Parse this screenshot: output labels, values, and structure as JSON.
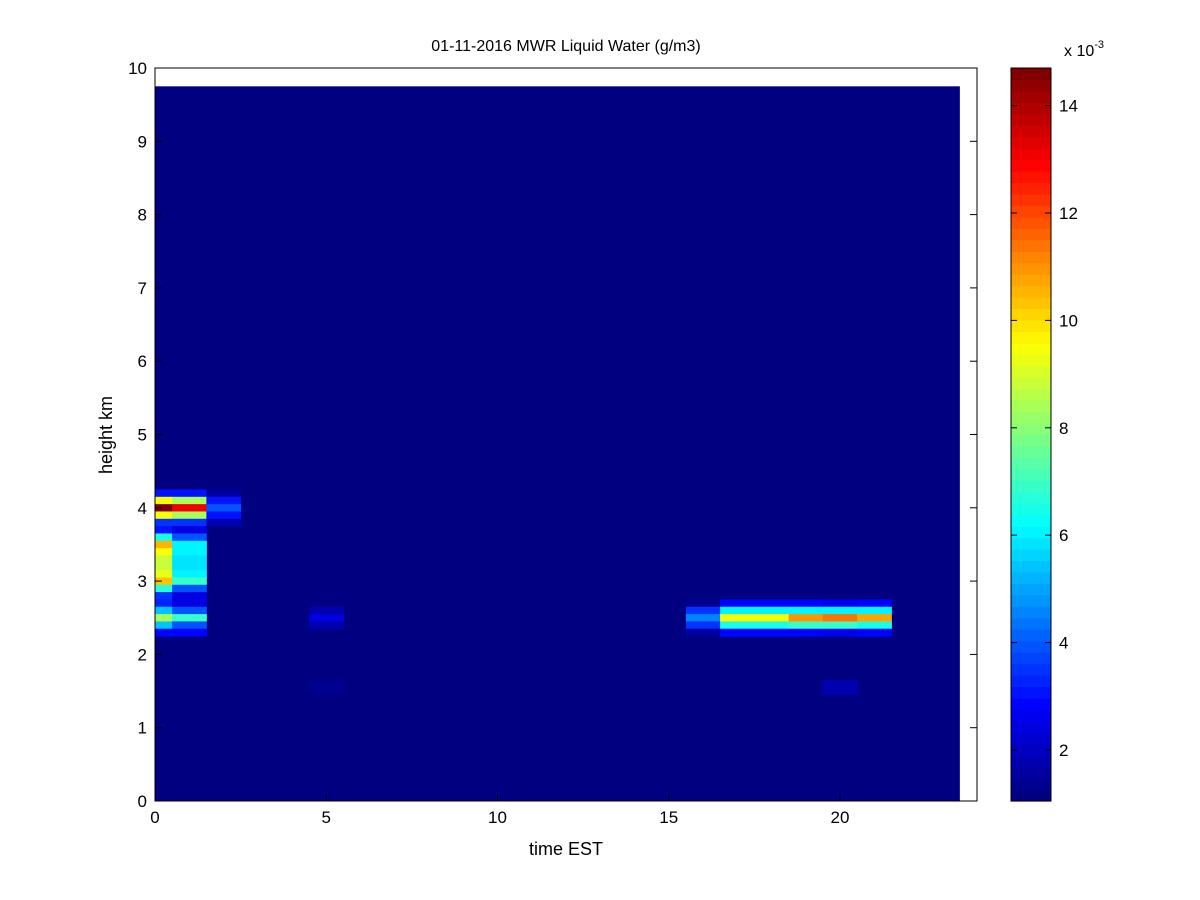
{
  "chart_data": {
    "type": "heatmap",
    "title": "01-11-2016 MWR Liquid Water (g/m3)",
    "xlabel": "time EST",
    "ylabel": "height km",
    "xlim": [
      0,
      24
    ],
    "ylim": [
      0,
      10
    ],
    "xticks": [
      0,
      5,
      10,
      15,
      20
    ],
    "yticks": [
      0,
      1,
      2,
      3,
      4,
      5,
      6,
      7,
      8,
      9,
      10
    ],
    "x_cells": {
      "start": 0,
      "end": 23,
      "step": 1
    },
    "y_cells": {
      "start": 0,
      "end": 9.7,
      "step": 0.1
    },
    "value_units": "x 10^-3 g/m3",
    "background_value": 1.1,
    "colormap": "jet",
    "colorbar": {
      "multiplier_base": "x 10",
      "multiplier_exponent": "-3",
      "clim": [
        1.05,
        14.7
      ],
      "ticks": [
        2,
        4,
        6,
        8,
        10,
        12,
        14
      ]
    },
    "grid": false,
    "cells": [
      [
        0,
        4.2,
        3.0
      ],
      [
        1,
        4.2,
        3.0
      ],
      [
        2,
        4.2,
        1.6
      ],
      [
        0,
        4.1,
        9.5
      ],
      [
        1,
        4.1,
        8.5
      ],
      [
        2,
        4.1,
        3.0
      ],
      [
        0,
        4.0,
        14.7
      ],
      [
        1,
        4.0,
        13.0
      ],
      [
        2,
        4.0,
        4.0
      ],
      [
        0,
        3.9,
        9.5
      ],
      [
        1,
        3.9,
        8.5
      ],
      [
        2,
        3.9,
        3.0
      ],
      [
        0,
        3.8,
        3.5
      ],
      [
        1,
        3.8,
        3.5
      ],
      [
        2,
        3.8,
        1.8
      ],
      [
        0,
        3.7,
        3.0
      ],
      [
        1,
        3.7,
        2.5
      ],
      [
        0,
        3.6,
        6.5
      ],
      [
        1,
        3.6,
        4.0
      ],
      [
        0,
        3.5,
        10.5
      ],
      [
        1,
        3.5,
        6.0
      ],
      [
        0,
        3.4,
        9.5
      ],
      [
        1,
        3.4,
        6.0
      ],
      [
        0,
        3.3,
        8.8
      ],
      [
        1,
        3.3,
        5.8
      ],
      [
        0,
        3.2,
        8.8
      ],
      [
        1,
        3.2,
        5.8
      ],
      [
        0,
        3.1,
        9.3
      ],
      [
        1,
        3.1,
        6.0
      ],
      [
        0,
        3.0,
        10.3
      ],
      [
        1,
        3.0,
        7.0
      ],
      [
        0,
        2.9,
        6.8
      ],
      [
        1,
        2.9,
        4.0
      ],
      [
        0,
        2.8,
        3.5
      ],
      [
        1,
        2.8,
        2.5
      ],
      [
        0,
        2.7,
        3.2
      ],
      [
        1,
        2.7,
        2.5
      ],
      [
        0,
        2.6,
        5.5
      ],
      [
        1,
        2.6,
        4.0
      ],
      [
        0,
        2.5,
        8.5
      ],
      [
        1,
        2.5,
        7.0
      ],
      [
        0,
        2.4,
        5.5
      ],
      [
        1,
        2.4,
        4.0
      ],
      [
        0,
        2.3,
        2.8
      ],
      [
        1,
        2.3,
        2.8
      ],
      [
        5,
        2.6,
        1.9
      ],
      [
        5,
        2.5,
        2.4
      ],
      [
        5,
        2.4,
        1.9
      ],
      [
        5,
        1.6,
        1.3
      ],
      [
        5,
        1.5,
        1.3
      ],
      [
        16,
        2.7,
        1.3
      ],
      [
        16,
        2.6,
        3.5
      ],
      [
        16,
        2.5,
        4.5
      ],
      [
        16,
        2.4,
        3.5
      ],
      [
        16,
        2.3,
        1.5
      ],
      [
        17,
        2.7,
        2.8
      ],
      [
        17,
        2.6,
        6.0
      ],
      [
        17,
        2.5,
        9.5
      ],
      [
        17,
        2.4,
        6.5
      ],
      [
        17,
        2.3,
        2.8
      ],
      [
        18,
        2.7,
        2.8
      ],
      [
        18,
        2.6,
        6.0
      ],
      [
        18,
        2.5,
        9.5
      ],
      [
        18,
        2.4,
        6.5
      ],
      [
        18,
        2.3,
        2.8
      ],
      [
        19,
        2.7,
        2.8
      ],
      [
        19,
        2.6,
        6.0
      ],
      [
        19,
        2.5,
        11.0
      ],
      [
        19,
        2.4,
        7.0
      ],
      [
        19,
        2.3,
        2.8
      ],
      [
        20,
        2.7,
        2.6
      ],
      [
        20,
        2.6,
        6.0
      ],
      [
        20,
        2.5,
        11.5
      ],
      [
        20,
        2.4,
        7.0
      ],
      [
        20,
        2.3,
        2.6
      ],
      [
        21,
        2.7,
        2.8
      ],
      [
        21,
        2.6,
        6.0
      ],
      [
        21,
        2.5,
        10.8
      ],
      [
        21,
        2.4,
        6.5
      ],
      [
        21,
        2.3,
        2.8
      ],
      [
        20,
        1.6,
        1.9
      ],
      [
        20,
        1.5,
        1.9
      ]
    ]
  }
}
